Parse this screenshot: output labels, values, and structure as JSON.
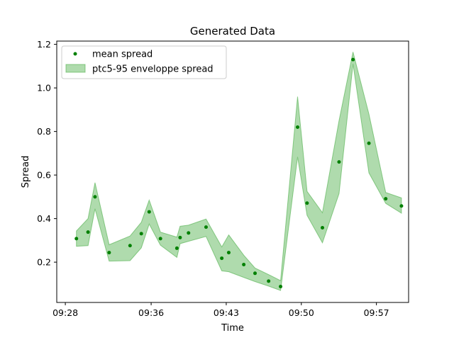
{
  "chart_data": {
    "type": "scatter",
    "title": "Generated Data",
    "xlabel": "Time",
    "ylabel": "Spread",
    "x_unit": "time HH:MM",
    "xlim": [
      "09:27:12",
      "09:60:00"
    ],
    "ylim": [
      0.015,
      1.215
    ],
    "x_ticks": [
      "09:28",
      "09:36",
      "09:43",
      "09:50",
      "09:57"
    ],
    "y_ticks": [
      0.2,
      0.4,
      0.6,
      0.8,
      1.0,
      1.2
    ],
    "grid": false,
    "legend_position": "top-left",
    "colors": {
      "mean": "#008000",
      "band_fill": "#4daf4a",
      "band_edge": "#4daf4a"
    },
    "series": [
      {
        "name": "mean spread",
        "kind": "points",
        "x": [
          "09:29:02",
          "09:30:07",
          "09:30:46",
          "09:32:05",
          "09:34:02",
          "09:35:05",
          "09:35:49",
          "09:36:52",
          "09:38:24",
          "09:38:42",
          "09:39:29",
          "09:41:07",
          "09:42:35",
          "09:43:14",
          "09:44:38",
          "09:45:41",
          "09:46:57",
          "09:48:04",
          "09:49:39",
          "09:50:32",
          "09:51:58",
          "09:53:31",
          "09:54:49",
          "09:56:18",
          "09:57:52",
          "09:59:20"
        ],
        "y": [
          0.308,
          0.338,
          0.5,
          0.244,
          0.276,
          0.331,
          0.431,
          0.308,
          0.264,
          0.313,
          0.334,
          0.361,
          0.218,
          0.244,
          0.189,
          0.149,
          0.113,
          0.088,
          0.82,
          0.471,
          0.358,
          0.66,
          1.13,
          0.746,
          0.491,
          0.458
        ]
      },
      {
        "name": "ptc5-95 enveloppe spread",
        "kind": "band",
        "x": [
          "09:29:02",
          "09:30:07",
          "09:30:46",
          "09:32:05",
          "09:34:02",
          "09:35:05",
          "09:35:49",
          "09:36:52",
          "09:38:24",
          "09:38:42",
          "09:39:29",
          "09:41:07",
          "09:42:35",
          "09:43:14",
          "09:44:38",
          "09:45:41",
          "09:46:57",
          "09:48:04",
          "09:49:39",
          "09:50:32",
          "09:51:58",
          "09:53:31",
          "09:54:49",
          "09:56:18",
          "09:57:52",
          "09:59:20"
        ],
        "lower": [
          0.273,
          0.276,
          0.445,
          0.205,
          0.207,
          0.266,
          0.375,
          0.278,
          0.222,
          0.285,
          0.296,
          0.318,
          0.16,
          0.156,
          0.13,
          0.111,
          0.09,
          0.07,
          0.683,
          0.415,
          0.289,
          0.515,
          1.11,
          0.61,
          0.47,
          0.425
        ],
        "upper": [
          0.343,
          0.4,
          0.565,
          0.28,
          0.32,
          0.383,
          0.485,
          0.338,
          0.315,
          0.365,
          0.37,
          0.398,
          0.27,
          0.325,
          0.232,
          0.173,
          0.143,
          0.115,
          0.96,
          0.525,
          0.427,
          0.85,
          1.165,
          0.88,
          0.52,
          0.495
        ]
      }
    ]
  }
}
